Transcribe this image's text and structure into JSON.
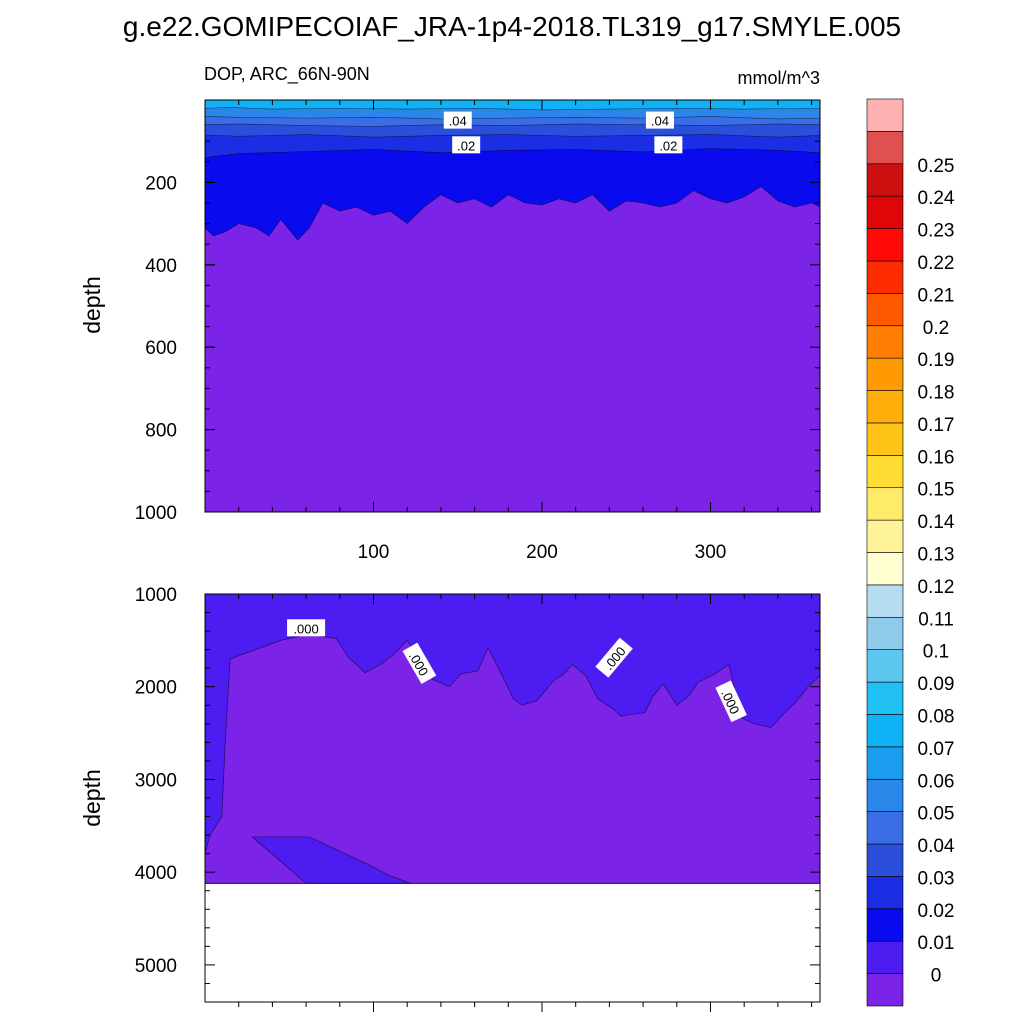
{
  "title": "g.e22.GOMIPECOIAF_JRA-1p4-2018.TL319_g17.SMYLE.005",
  "colors": {
    "cn": [
      "#7b24e8",
      "#4d1cf0",
      "#0a0aee",
      "#1c2ee3",
      "#2b4fdb",
      "#3b6ee6",
      "#2b86ea",
      "#1a9df0",
      "#10b2f6",
      "#20c0f4",
      "#5cc6ee",
      "#8ecbea",
      "#b6dcf2",
      "#ffffd2",
      "#fff39a",
      "#ffeb6a",
      "#ffdd33",
      "#ffc418",
      "#ffae0a",
      "#ff9a02",
      "#ff7d00",
      "#ff5a00",
      "#ff2c00",
      "#ff0a08",
      "#de0606",
      "#cc1010",
      "#e05050",
      "#ffb0b0"
    ]
  },
  "chart_data": [
    {
      "type": "contour",
      "panel": "upper",
      "left_label": "DOP, ARC_66N-90N",
      "right_label": "mmol/m^3",
      "ylabel": "depth",
      "xlim": [
        0,
        365
      ],
      "ylim": [
        1000,
        0
      ],
      "x_ticks": [
        100,
        200,
        300
      ],
      "y_ticks": [
        200,
        400,
        600,
        800,
        1000
      ],
      "contour_labels": [
        {
          "text": ".04",
          "x": 150,
          "y": 50
        },
        {
          "text": ".04",
          "x": 270,
          "y": 50
        },
        {
          "text": ".02",
          "x": 155,
          "y": 110
        },
        {
          "text": ".02",
          "x": 275,
          "y": 110
        }
      ],
      "bands": [
        {
          "level_index": 8,
          "x": [
            0,
            15,
            40,
            80,
            120,
            160,
            200,
            240,
            280,
            320,
            365
          ],
          "y": [
            20,
            18,
            22,
            20,
            22,
            20,
            24,
            22,
            20,
            22,
            20
          ]
        },
        {
          "level_index": 6,
          "x": [
            0,
            20,
            60,
            100,
            140,
            180,
            220,
            260,
            300,
            340,
            365
          ],
          "y": [
            40,
            42,
            44,
            42,
            46,
            44,
            42,
            44,
            40,
            46,
            44
          ]
        },
        {
          "level_index": 5,
          "x": [
            0,
            20,
            60,
            100,
            140,
            180,
            220,
            260,
            300,
            340,
            365
          ],
          "y": [
            60,
            58,
            62,
            64,
            60,
            62,
            58,
            60,
            62,
            58,
            60
          ]
        },
        {
          "level_index": 4,
          "x": [
            0,
            20,
            60,
            100,
            140,
            180,
            220,
            260,
            300,
            340,
            365
          ],
          "y": [
            85,
            88,
            84,
            90,
            86,
            84,
            88,
            86,
            84,
            90,
            86
          ]
        },
        {
          "level_index": 3,
          "x": [
            0,
            20,
            60,
            100,
            140,
            180,
            220,
            260,
            300,
            340,
            365
          ],
          "y": [
            140,
            130,
            125,
            120,
            128,
            122,
            120,
            126,
            118,
            122,
            128
          ]
        },
        {
          "level_index": 2,
          "x": [
            0,
            5,
            12,
            20,
            30,
            38,
            45,
            55,
            62,
            70,
            80,
            90,
            100,
            110,
            120,
            130,
            140,
            150,
            160,
            170,
            180,
            190,
            200,
            210,
            220,
            230,
            240,
            250,
            260,
            270,
            280,
            290,
            300,
            310,
            320,
            330,
            340,
            350,
            360,
            365
          ],
          "y": [
            310,
            330,
            320,
            300,
            310,
            330,
            290,
            340,
            310,
            250,
            270,
            260,
            280,
            270,
            300,
            260,
            230,
            250,
            240,
            260,
            230,
            250,
            255,
            240,
            250,
            230,
            270,
            245,
            250,
            260,
            250,
            220,
            240,
            250,
            235,
            210,
            245,
            260,
            250,
            260
          ]
        }
      ],
      "base_level_index": 0
    },
    {
      "type": "contour",
      "panel": "lower",
      "ylabel": "depth",
      "xlim": [
        0,
        365
      ],
      "ylim": [
        5400,
        1000
      ],
      "x_ticks": [
        100,
        200,
        300
      ],
      "y_ticks": [
        1000,
        2000,
        3000,
        4000,
        5000
      ],
      "bottom_depth": 4120,
      "contour_labels": [
        {
          "text": ".000",
          "x": 60,
          "y": 1370
        },
        {
          "text": ".000",
          "x": 127,
          "y": 1750
        },
        {
          "text": ".000",
          "x": 243,
          "y": 1690
        },
        {
          "text": ".000",
          "x": 312,
          "y": 2160
        }
      ],
      "upper_band_level_index": 1,
      "zero_contour": {
        "x": [
          0,
          3,
          10,
          12,
          15,
          30,
          45,
          55,
          63,
          70,
          78,
          85,
          95,
          105,
          112,
          120,
          128,
          135,
          145,
          152,
          162,
          168,
          175,
          183,
          188,
          197,
          207,
          212,
          218,
          226,
          233,
          243,
          247,
          252,
          261,
          266,
          272,
          280,
          287,
          293,
          303,
          311,
          318,
          326,
          336,
          343,
          350,
          358,
          365
        ],
        "y": [
          3800,
          3600,
          3400,
          2600,
          1700,
          1600,
          1500,
          1460,
          1400,
          1460,
          1480,
          1680,
          1850,
          1750,
          1650,
          1500,
          1720,
          1920,
          2000,
          1860,
          1830,
          1580,
          1830,
          2130,
          2200,
          2150,
          1930,
          1880,
          1760,
          1880,
          2130,
          2250,
          2320,
          2300,
          2280,
          2100,
          1970,
          2200,
          2100,
          1950,
          1860,
          1760,
          2330,
          2400,
          2440,
          2300,
          2180,
          2000,
          1880
        ]
      },
      "inner_blob": {
        "level_index": 1,
        "x": [
          28,
          62,
          95,
          110,
          122,
          60
        ],
        "y": [
          3620,
          3620,
          3900,
          4040,
          4120,
          4120
        ]
      }
    },
    {
      "type": "colorbar",
      "labels": [
        "0",
        "0.01",
        "0.02",
        "0.03",
        "0.04",
        "0.05",
        "0.06",
        "0.07",
        "0.08",
        "0.09",
        "0.1",
        "0.11",
        "0.12",
        "0.13",
        "0.14",
        "0.15",
        "0.16",
        "0.17",
        "0.18",
        "0.19",
        "0.2",
        "0.21",
        "0.22",
        "0.23",
        "0.24",
        "0.25"
      ]
    }
  ]
}
